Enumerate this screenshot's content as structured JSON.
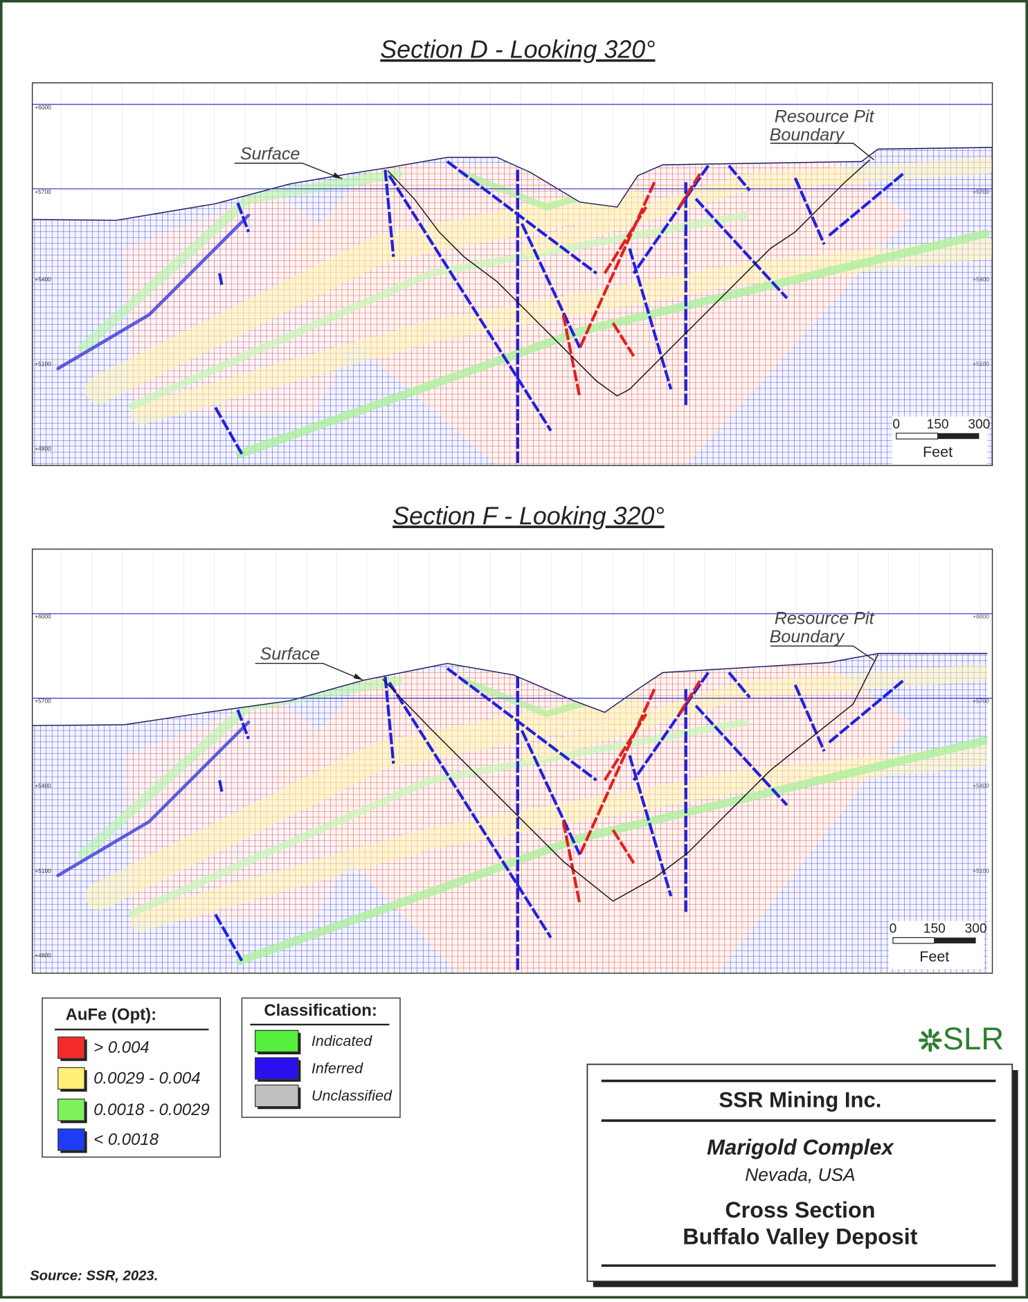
{
  "sections": [
    {
      "title": "Section D - Looking 320°",
      "surface_label": "Surface",
      "pit_label": [
        "Resource Pit",
        "Boundary"
      ],
      "elevations": [
        "+6000",
        "+5700",
        "+5400",
        "+5100",
        "+4800"
      ],
      "scale": {
        "ticks": [
          "0",
          "150",
          "300"
        ],
        "unit": "Feet"
      }
    },
    {
      "title": "Section F - Looking 320°",
      "surface_label": "Surface",
      "pit_label": [
        "Resource Pit",
        "Boundary"
      ],
      "elevations": [
        "+6000",
        "+5700",
        "+5400",
        "+5100",
        "+4800"
      ],
      "scale": {
        "ticks": [
          "0",
          "150",
          "300"
        ],
        "unit": "Feet"
      }
    }
  ],
  "legend_aufe": {
    "title": "AuFe (Opt):",
    "items": [
      {
        "label": "> 0.004",
        "color": "#f42b2b"
      },
      {
        "label": "0.0029 - 0.004",
        "color": "#fff176"
      },
      {
        "label": "0.0018 - 0.0029",
        "color": "#7ef25a"
      },
      {
        "label": "< 0.0018",
        "color": "#1e3cf5"
      }
    ]
  },
  "legend_classification": {
    "title": "Classification:",
    "items": [
      {
        "label": "Indicated",
        "color": "#55ee3a"
      },
      {
        "label": "Inferred",
        "color": "#2a10ee"
      },
      {
        "label": "Unclassified",
        "color": "#c0c0c0"
      }
    ]
  },
  "logo": "SLR",
  "title_block": {
    "company": "SSR Mining Inc.",
    "project": "Marigold Complex",
    "location": "Nevada, USA",
    "figure_title": [
      "Cross Section",
      "Buffalo Valley Deposit"
    ]
  },
  "source": "Source: SSR, 2023."
}
